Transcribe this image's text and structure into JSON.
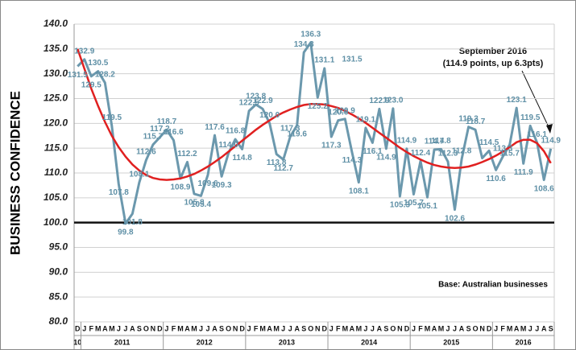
{
  "chart_data": {
    "type": "line",
    "y_axis_label": "BUSINESS CONFIDENCE",
    "categories": [
      "D",
      "J",
      "F",
      "M",
      "A",
      "M",
      "J",
      "J",
      "A",
      "S",
      "O",
      "N",
      "D",
      "J",
      "F",
      "M",
      "A",
      "M",
      "J",
      "J",
      "A",
      "S",
      "O",
      "N",
      "D",
      "J",
      "F",
      "M",
      "A",
      "M",
      "J",
      "J",
      "A",
      "S",
      "O",
      "N",
      "D",
      "J",
      "F",
      "M",
      "A",
      "M",
      "J",
      "J",
      "A",
      "S",
      "O",
      "N",
      "D",
      "J",
      "F",
      "M",
      "A",
      "M",
      "J",
      "J",
      "A",
      "S",
      "O",
      "N",
      "D",
      "J",
      "F",
      "M",
      "A",
      "M",
      "J",
      "J",
      "A",
      "S"
    ],
    "years": [
      "10",
      "2011",
      "2012",
      "2013",
      "2014",
      "2015",
      "2016"
    ],
    "series": [
      {
        "color": "#6b98ad",
        "values": [
          131.5,
          132.9,
          129.5,
          130.5,
          128.2,
          119.5,
          107.8,
          99.8,
          101.8,
          108.1,
          112.6,
          115.7,
          117.2,
          118.7,
          116.6,
          108.9,
          112.2,
          105.8,
          105.4,
          109.6,
          117.6,
          109.3,
          114.0,
          116.8,
          114.8,
          122.5,
          123.8,
          122.9,
          120.0,
          113.8,
          112.7,
          117.3,
          119.6,
          134.3,
          136.3,
          125.2,
          131.1,
          117.3,
          120.6,
          120.9,
          114.3,
          108.1,
          119.1,
          116.1,
          122.9,
          114.9,
          123.0,
          105.3,
          114.9,
          105.7,
          112.4,
          105.1,
          114.7,
          114.8,
          112.3,
          102.6,
          112.8,
          119.3,
          118.7,
          113.0,
          114.5,
          110.6,
          113.3,
          115.7,
          123.1,
          111.9,
          119.5,
          116.1,
          108.6,
          114.9
        ],
        "value_labels": [
          "131.5",
          "132.9",
          "129.5",
          "130.5",
          "128.2",
          "119.5",
          "107.8",
          "99.8",
          "101.8",
          "108.1",
          "112.6",
          "115.7",
          "117.2",
          "118.7",
          "116.6",
          "108.9",
          "112.2",
          "105.8",
          "105.4",
          "109.6",
          "117.6",
          "109.3",
          "114.0",
          "116.8",
          "114.8",
          "122.5",
          "123.8",
          "122.9",
          "120.0",
          "113.8",
          "112.7",
          "117.3",
          "119.6",
          "134.3",
          "136.3",
          "125.2",
          "131.1",
          "117.3",
          "120.6",
          "120.9",
          "114.3",
          "108.1",
          "119.1",
          "116.1",
          "122.9",
          "114.9",
          "123.0",
          "105.3",
          "114.9",
          "105.7",
          "112.4",
          "105.1",
          "114.7",
          "114.8",
          "112.3",
          "102.6",
          "112.8",
          "119.3",
          "118.7",
          null,
          "114.5",
          "110.6",
          "113.3",
          "115.7",
          "123.1",
          "111.9",
          "119.5",
          "116.1",
          "108.6",
          "114.9"
        ]
      }
    ],
    "trend": {
      "color": "#e02020",
      "values": [
        135,
        131,
        127,
        123.5,
        120.3,
        117.5,
        115.2,
        113.3,
        111.7,
        110.5,
        109.6,
        109.0,
        108.7,
        108.6,
        108.7,
        108.9,
        109.3,
        109.8,
        110.5,
        111.3,
        112.2,
        113.2,
        114.3,
        115.4,
        116.5,
        117.6,
        118.7,
        119.7,
        120.6,
        121.5,
        122.2,
        122.8,
        123.3,
        123.7,
        123.9,
        123.9,
        123.8,
        123.5,
        123.1,
        122.5,
        121.8,
        121.0,
        120.1,
        119.1,
        118.1,
        117.1,
        116.1,
        115.1,
        114.2,
        113.4,
        112.7,
        112.1,
        111.6,
        111.3,
        111.1,
        111.0,
        111.1,
        111.3,
        111.7,
        112.2,
        112.8,
        113.5,
        114.3,
        115.2,
        116.2,
        116.7,
        116.7,
        116.0,
        114.4,
        112.0
      ]
    },
    "baseline": 100,
    "ylim": [
      80,
      140
    ],
    "yticks": [
      {
        "value": 80,
        "label": "80.0"
      },
      {
        "value": 85,
        "label": "85.0"
      },
      {
        "value": 90,
        "label": "90.0"
      },
      {
        "value": 95,
        "label": "95.0"
      },
      {
        "value": 100,
        "label": "100.0"
      },
      {
        "value": 105,
        "label": "105.0"
      },
      {
        "value": 110,
        "label": "110.0"
      },
      {
        "value": 115,
        "label": "115.0"
      },
      {
        "value": 120,
        "label": "120.0"
      },
      {
        "value": 125,
        "label": "125.0"
      },
      {
        "value": 130,
        "label": "130.0"
      },
      {
        "value": 135,
        "label": "135.0"
      },
      {
        "value": 140,
        "label": "140.0"
      }
    ],
    "grid": true,
    "annotations": [
      "September 2016",
      "(114.9 points, up 6.3pts)",
      "Base: Australian businesses",
      "131.5"
    ]
  }
}
